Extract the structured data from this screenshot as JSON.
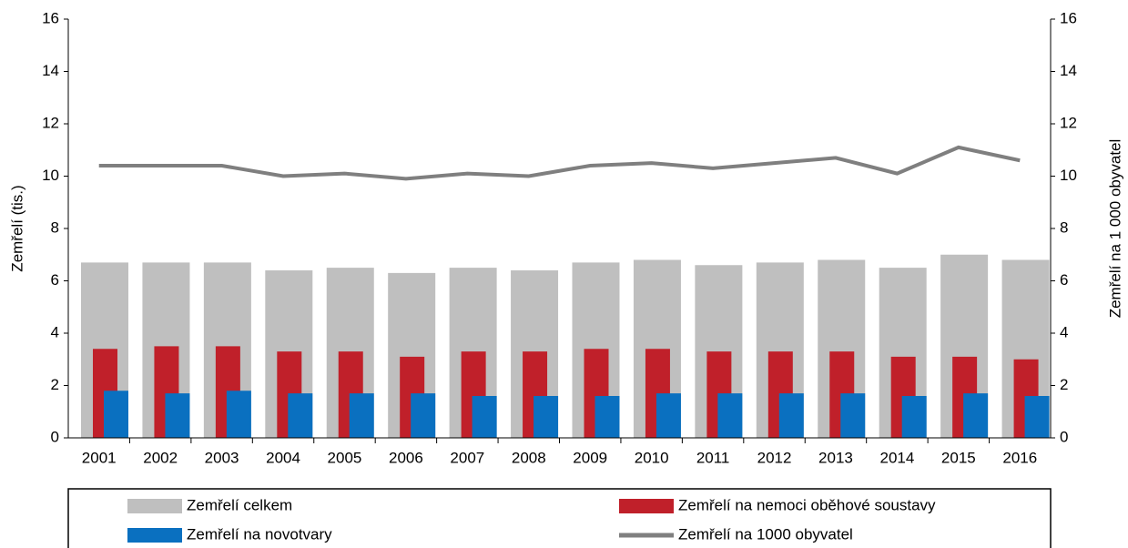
{
  "chart_data": {
    "type": "bar",
    "categories": [
      "2001",
      "2002",
      "2003",
      "2004",
      "2005",
      "2006",
      "2007",
      "2008",
      "2009",
      "2010",
      "2011",
      "2012",
      "2013",
      "2014",
      "2015",
      "2016"
    ],
    "y_label": "Zemřelí (tis.)",
    "y2_label": "Zemřelí na 1 000 obyvatel",
    "ylim": [
      0,
      16
    ],
    "yticks": [
      0,
      2,
      4,
      6,
      8,
      10,
      12,
      14,
      16
    ],
    "y2lim": [
      0,
      16
    ],
    "y2ticks": [
      0,
      2,
      4,
      6,
      8,
      10,
      12,
      14,
      16
    ],
    "series": [
      {
        "name": "Zemřelí celkem",
        "type": "bar",
        "color": "#bfbfbf",
        "values": [
          6.7,
          6.7,
          6.7,
          6.4,
          6.5,
          6.3,
          6.5,
          6.4,
          6.7,
          6.8,
          6.6,
          6.7,
          6.8,
          6.5,
          7.0,
          6.8
        ]
      },
      {
        "name": "Zemřelí na nemoci oběhové soustavy",
        "type": "bar",
        "color": "#c0202a",
        "values": [
          3.4,
          3.5,
          3.5,
          3.3,
          3.3,
          3.1,
          3.3,
          3.3,
          3.4,
          3.4,
          3.3,
          3.3,
          3.3,
          3.1,
          3.1,
          3.0
        ]
      },
      {
        "name": "Zemřelí na novotvary",
        "type": "bar",
        "color": "#0a70c0",
        "values": [
          1.8,
          1.7,
          1.8,
          1.7,
          1.7,
          1.7,
          1.6,
          1.6,
          1.6,
          1.7,
          1.7,
          1.7,
          1.7,
          1.6,
          1.7,
          1.6
        ]
      },
      {
        "name": "Zemřelí na 1000 obyvatel",
        "type": "line",
        "axis": "y2",
        "color": "#7f7f7f",
        "values": [
          10.4,
          10.4,
          10.4,
          10.0,
          10.1,
          9.9,
          10.1,
          10.0,
          10.4,
          10.5,
          10.3,
          10.5,
          10.7,
          10.1,
          11.1,
          10.6
        ]
      }
    ]
  }
}
